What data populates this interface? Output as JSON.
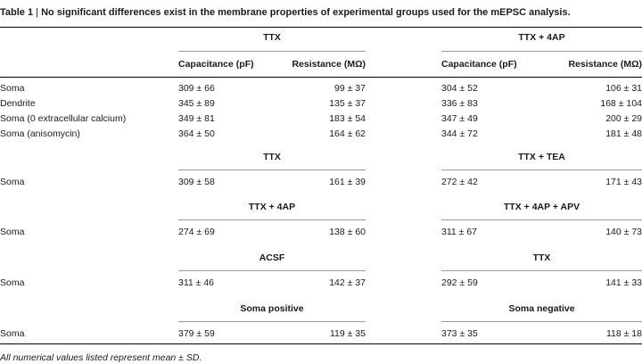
{
  "title": {
    "prefix": "Table 1",
    "separator": "|",
    "text": "No significant differences exist in the membrane properties of experimental groups used for the mEPSC analysis."
  },
  "group_headers": {
    "left": "TTX",
    "right": "TTX + 4AP"
  },
  "column_headers": {
    "left_cap": "Capacitance (pF)",
    "left_res": "Resistance (MΩ)",
    "right_cap": "Capacitance (pF)",
    "right_res": "Resistance (MΩ)"
  },
  "main_rows": [
    {
      "label": "Soma",
      "lcap": "309 ± 66",
      "lres": "99 ± 37",
      "rcap": "304 ± 52",
      "rres": "106 ± 31"
    },
    {
      "label": "Dendrite",
      "lcap": "345 ± 89",
      "lres": "135 ± 37",
      "rcap": "336 ± 83",
      "rres": "168 ± 104"
    },
    {
      "label": "Soma (0 extracellular calcium)",
      "lcap": "349 ± 81",
      "lres": "183 ± 54",
      "rcap": "347 ± 49",
      "rres": "200 ± 29"
    },
    {
      "label": "Soma (anisomycin)",
      "lcap": "364 ± 50",
      "lres": "164 ± 62",
      "rcap": "344 ± 72",
      "rres": "181 ± 48"
    }
  ],
  "sections": [
    {
      "left_header": "TTX",
      "right_header": "TTX + TEA",
      "row": {
        "label": "Soma",
        "lcap": "309 ± 58",
        "lres": "161 ± 39",
        "rcap": "272 ± 42",
        "rres": "171 ± 43"
      }
    },
    {
      "left_header": "TTX + 4AP",
      "right_header": "TTX + 4AP + APV",
      "row": {
        "label": "Soma",
        "lcap": "274 ± 69",
        "lres": "138 ± 60",
        "rcap": "311 ± 67",
        "rres": "140 ± 73"
      }
    },
    {
      "left_header": "ACSF",
      "right_header": "TTX",
      "row": {
        "label": "Soma",
        "lcap": "311 ± 46",
        "lres": "142 ± 37",
        "rcap": "292 ± 59",
        "rres": "141 ± 33"
      }
    },
    {
      "left_header": "Soma positive",
      "right_header": "Soma negative",
      "row": {
        "label": "Soma",
        "lcap": "379 ± 59",
        "lres": "119 ± 35",
        "rcap": "373 ± 35",
        "rres": "118 ± 18"
      }
    }
  ],
  "footnote": "All numerical values listed represent mean ± SD."
}
